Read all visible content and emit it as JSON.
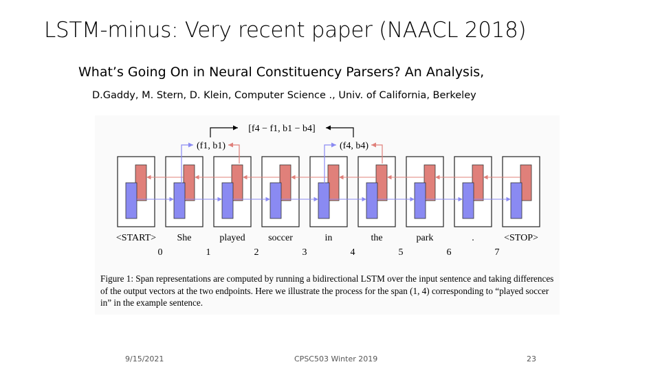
{
  "slide": {
    "title": "LSTM-minus: Very recent paper (NAACL 2018)",
    "subtitle": "What’s Going On in Neural Constituency Parsers? An Analysis,",
    "authors": "D.Gaddy, M. Stern, D. Klein, Computer Science ., Univ. of California, Berkeley"
  },
  "figure": {
    "top_label": "[f4 − f1, b1 − b4]",
    "left_label": "(f1, b1)",
    "right_label": "(f4, b4)",
    "words": [
      "<START>",
      "She",
      "played",
      "soccer",
      "in",
      "the",
      "park",
      ".",
      "<STOP>"
    ],
    "indices": [
      "0",
      "1",
      "2",
      "3",
      "4",
      "5",
      "6",
      "7"
    ],
    "caption": "Figure 1: Span representations are computed by running a bidirectional LSTM over the input sentence and taking differences of the output vectors at the two endpoints. Here we illustrate the process for the span (1, 4) corresponding to “played soccer in” in the example sentence.",
    "colors": {
      "forward": "#8a8af2",
      "backward": "#e0807a"
    }
  },
  "footer": {
    "date": "9/15/2021",
    "course": "CPSC503 Winter 2019",
    "page": "23"
  }
}
